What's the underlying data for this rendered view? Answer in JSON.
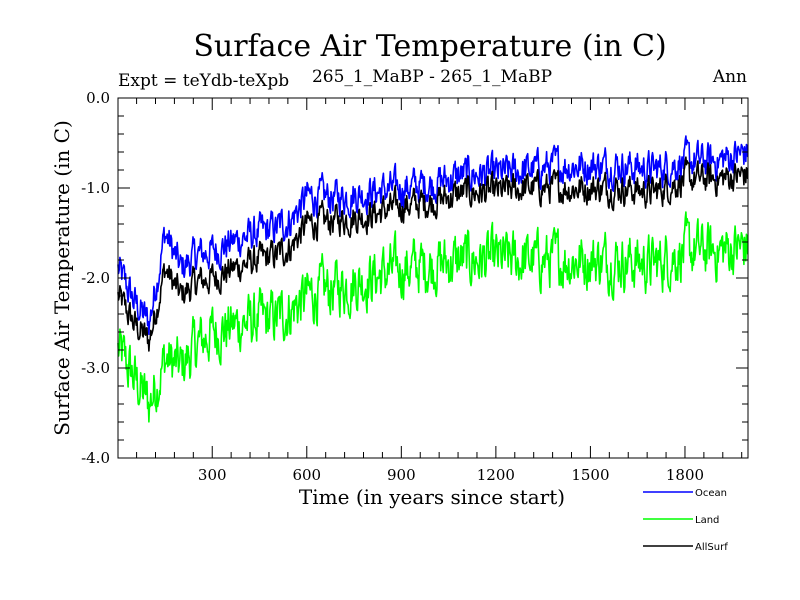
{
  "chart_data": {
    "type": "line",
    "title": "Surface Air Temperature (in C)",
    "subtitle_left": "Expt = teYdb-teXpb",
    "subtitle_center": "265_1_MaBP - 265_1_MaBP",
    "subtitle_right": "Ann",
    "xlabel": "Time (in years since start)",
    "ylabel": "Surface Air Temperature (in C)",
    "xlim": [
      1,
      2000
    ],
    "ylim": [
      -4.0,
      0.0
    ],
    "x_ticks": [
      300,
      600,
      900,
      1200,
      1500,
      1800
    ],
    "x_tick_labels": [
      "300",
      "600",
      "900",
      "1200",
      "1500",
      "1800"
    ],
    "y_ticks": [
      0.0,
      -1.0,
      -2.0,
      -3.0,
      -4.0
    ],
    "y_tick_labels": [
      "0.0",
      "-1.0",
      "-2.0",
      "-3.0",
      "-4.0"
    ],
    "legend_placement": "bottom-right, outside plot",
    "series": [
      {
        "name": "Ocean",
        "color": "#0000ff",
        "x": [
          1,
          50,
          100,
          150,
          200,
          250,
          300,
          400,
          500,
          550,
          600,
          700,
          800,
          900,
          1000,
          1100,
          1200,
          1300,
          1400,
          1500,
          1600,
          1700,
          1800,
          1900,
          2000
        ],
        "y": [
          -1.9,
          -2.25,
          -2.5,
          -1.5,
          -1.9,
          -1.75,
          -1.7,
          -1.55,
          -1.45,
          -1.35,
          -1.1,
          -1.1,
          -1.05,
          -1.0,
          -0.95,
          -0.85,
          -0.85,
          -0.8,
          -0.75,
          -0.75,
          -0.75,
          -0.8,
          -0.7,
          -0.7,
          -0.6
        ]
      },
      {
        "name": "Land",
        "color": "#00ff00",
        "x": [
          1,
          50,
          100,
          150,
          200,
          250,
          300,
          400,
          500,
          550,
          600,
          700,
          800,
          900,
          1000,
          1100,
          1200,
          1300,
          1400,
          1500,
          1600,
          1700,
          1800,
          1900,
          2000
        ],
        "y": [
          -2.8,
          -3.1,
          -3.4,
          -2.9,
          -3.0,
          -2.75,
          -2.6,
          -2.5,
          -2.45,
          -2.35,
          -2.2,
          -2.1,
          -2.0,
          -1.9,
          -1.85,
          -1.8,
          -1.8,
          -1.8,
          -1.8,
          -1.8,
          -1.8,
          -1.85,
          -1.7,
          -1.7,
          -1.65
        ]
      },
      {
        "name": "AllSurf",
        "color": "#000000",
        "x": [
          1,
          50,
          100,
          150,
          200,
          250,
          300,
          400,
          500,
          550,
          600,
          700,
          800,
          900,
          1000,
          1100,
          1200,
          1300,
          1400,
          1500,
          1600,
          1700,
          1800,
          1900,
          2000
        ],
        "y": [
          -2.2,
          -2.5,
          -2.7,
          -1.9,
          -2.2,
          -2.05,
          -2.0,
          -1.85,
          -1.75,
          -1.65,
          -1.4,
          -1.35,
          -1.3,
          -1.2,
          -1.15,
          -1.05,
          -1.05,
          -1.0,
          -1.0,
          -1.0,
          -1.0,
          -1.05,
          -0.9,
          -0.9,
          -0.85
        ]
      }
    ]
  }
}
